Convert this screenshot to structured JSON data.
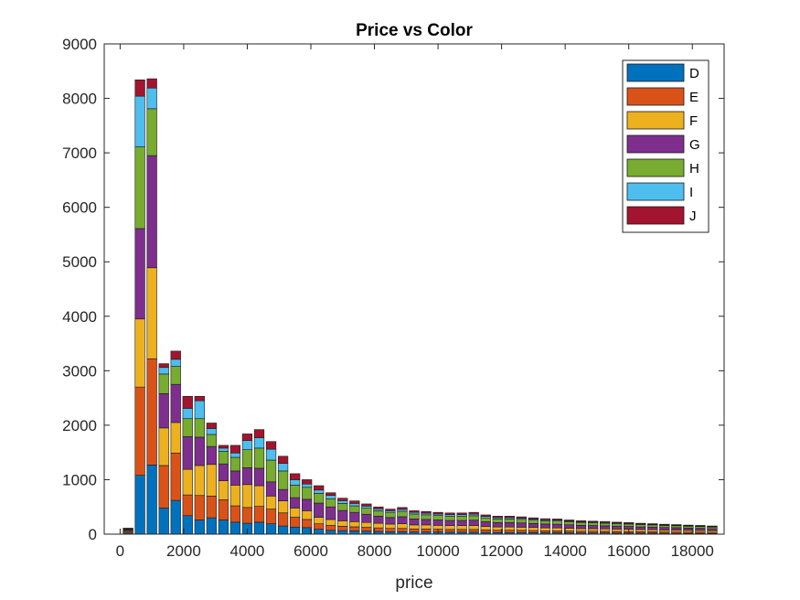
{
  "chart_data": {
    "type": "bar",
    "stacked": true,
    "title": "Price vs Color",
    "xlabel": "price",
    "ylabel": "",
    "xlim": [
      -500,
      19000
    ],
    "ylim": [
      0,
      9000
    ],
    "xticks": [
      0,
      2000,
      4000,
      6000,
      8000,
      10000,
      12000,
      14000,
      16000,
      18000
    ],
    "yticks": [
      0,
      1000,
      2000,
      3000,
      4000,
      5000,
      6000,
      7000,
      8000,
      9000
    ],
    "grid": false,
    "legend_position": "top-right",
    "bin_width": 374,
    "x": [
      250,
      625,
      1000,
      1375,
      1750,
      2125,
      2500,
      2875,
      3250,
      3625,
      4000,
      4375,
      4750,
      5125,
      5500,
      5875,
      6250,
      6625,
      7000,
      7375,
      7750,
      8125,
      8500,
      8875,
      9250,
      9625,
      10000,
      10375,
      10750,
      11125,
      11500,
      11875,
      12250,
      12625,
      13000,
      13375,
      13750,
      14125,
      14500,
      14875,
      15250,
      15625,
      16000,
      16375,
      16750,
      17125,
      17500,
      17875,
      18250,
      18625
    ],
    "series": [
      {
        "name": "D",
        "color": "#0072BD",
        "values": [
          20,
          1080,
          1270,
          480,
          620,
          340,
          260,
          300,
          260,
          220,
          200,
          220,
          190,
          150,
          130,
          120,
          90,
          70,
          65,
          60,
          55,
          50,
          45,
          45,
          40,
          40,
          38,
          36,
          36,
          36,
          32,
          30,
          30,
          30,
          28,
          26,
          26,
          24,
          22,
          22,
          22,
          20,
          20,
          18,
          18,
          16,
          16,
          14,
          14,
          12
        ]
      },
      {
        "name": "E",
        "color": "#D95319",
        "values": [
          20,
          1620,
          1950,
          780,
          870,
          380,
          450,
          400,
          370,
          300,
          290,
          290,
          270,
          240,
          180,
          150,
          100,
          90,
          80,
          75,
          70,
          65,
          60,
          60,
          55,
          55,
          52,
          50,
          50,
          50,
          45,
          42,
          42,
          40,
          38,
          36,
          36,
          34,
          32,
          32,
          30,
          30,
          28,
          26,
          26,
          24,
          24,
          22,
          22,
          20
        ]
      },
      {
        "name": "F",
        "color": "#EDB120",
        "values": [
          20,
          1250,
          1670,
          690,
          560,
          470,
          550,
          580,
          350,
          380,
          420,
          380,
          240,
          220,
          170,
          160,
          120,
          110,
          100,
          95,
          90,
          85,
          80,
          85,
          75,
          75,
          72,
          70,
          70,
          70,
          65,
          60,
          60,
          58,
          56,
          54,
          52,
          50,
          48,
          46,
          45,
          44,
          42,
          40,
          38,
          36,
          35,
          34,
          32,
          30
        ]
      },
      {
        "name": "G",
        "color": "#7E2F8E",
        "values": [
          20,
          1660,
          2060,
          630,
          700,
          600,
          520,
          330,
          310,
          260,
          310,
          320,
          260,
          210,
          190,
          210,
          260,
          230,
          190,
          170,
          150,
          130,
          120,
          130,
          110,
          100,
          98,
          95,
          95,
          100,
          85,
          80,
          80,
          78,
          74,
          70,
          68,
          64,
          60,
          58,
          56,
          54,
          52,
          50,
          48,
          46,
          44,
          42,
          40,
          38
        ]
      },
      {
        "name": "H",
        "color": "#77AC30",
        "values": [
          10,
          1500,
          860,
          360,
          330,
          330,
          340,
          220,
          230,
          250,
          330,
          370,
          400,
          340,
          230,
          220,
          180,
          150,
          130,
          120,
          110,
          100,
          95,
          100,
          90,
          85,
          82,
          80,
          80,
          82,
          72,
          68,
          68,
          66,
          62,
          60,
          58,
          54,
          52,
          50,
          48,
          46,
          44,
          42,
          40,
          38,
          36,
          34,
          32,
          30
        ]
      },
      {
        "name": "I",
        "color": "#4DBEEE",
        "values": [
          10,
          930,
          380,
          120,
          130,
          190,
          330,
          110,
          60,
          80,
          170,
          190,
          200,
          140,
          100,
          60,
          60,
          60,
          50,
          45,
          40,
          35,
          30,
          35,
          30,
          30,
          28,
          28,
          28,
          30,
          26,
          24,
          24,
          22,
          20,
          18,
          18,
          16,
          14,
          14,
          14,
          12,
          12,
          12,
          10,
          10,
          10,
          10,
          10,
          10
        ]
      },
      {
        "name": "J",
        "color": "#A2142F",
        "values": [
          10,
          300,
          170,
          70,
          150,
          220,
          80,
          100,
          50,
          140,
          120,
          150,
          140,
          130,
          110,
          80,
          80,
          50,
          45,
          45,
          40,
          35,
          30,
          35,
          30,
          30,
          30,
          30,
          30,
          32,
          28,
          26,
          26,
          24,
          22,
          20,
          20,
          18,
          18,
          16,
          16,
          14,
          14,
          12,
          12,
          12,
          10,
          10,
          10,
          10
        ]
      }
    ]
  }
}
